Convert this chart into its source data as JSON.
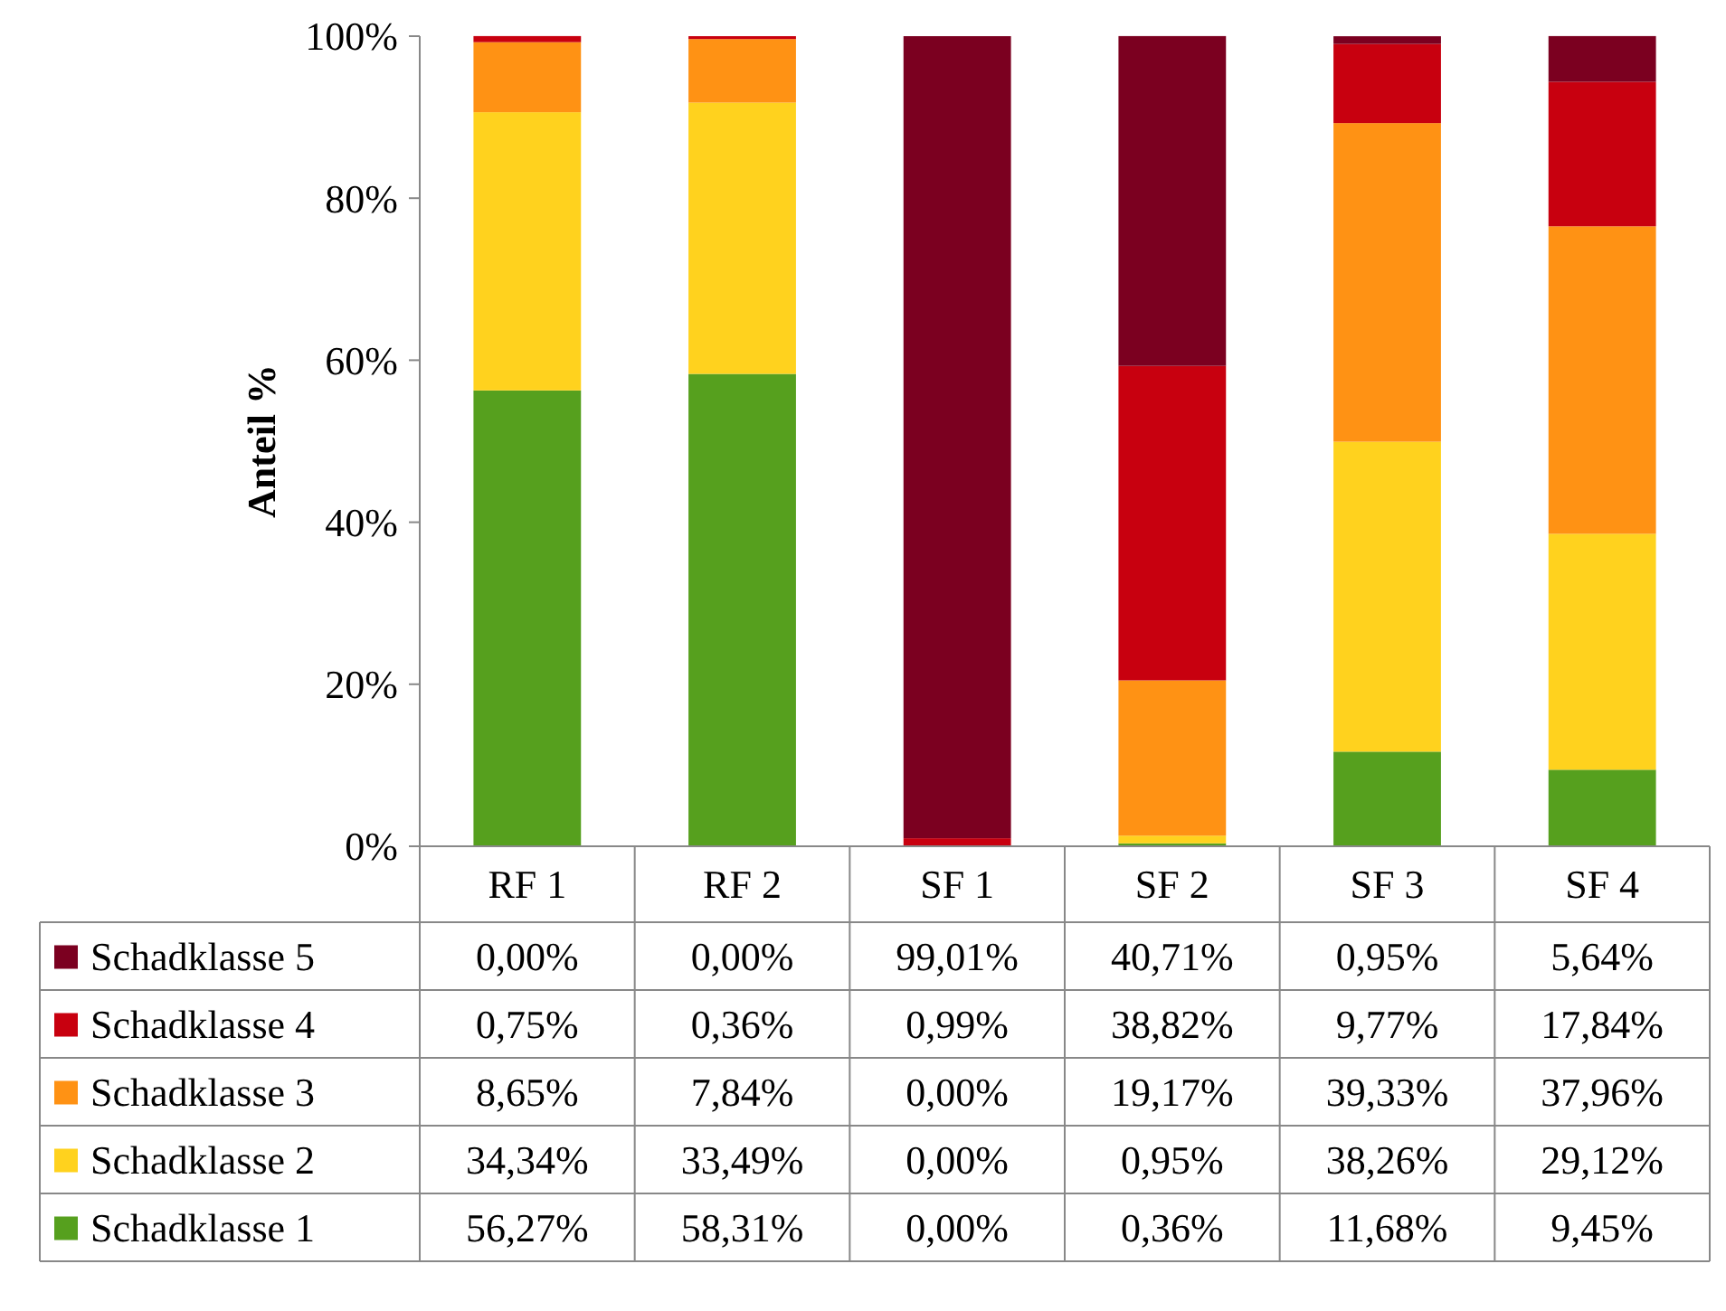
{
  "chart_data": {
    "type": "bar",
    "stacked": true,
    "ylabel": "Anteil %",
    "categories": [
      "RF 1",
      "RF 2",
      "SF 1",
      "SF 2",
      "SF 3",
      "SF 4"
    ],
    "ylim": [
      0,
      100
    ],
    "yticks": [
      {
        "value": 0,
        "label": "0%"
      },
      {
        "value": 20,
        "label": "20%"
      },
      {
        "value": 40,
        "label": "40%"
      },
      {
        "value": 60,
        "label": "60%"
      },
      {
        "value": 80,
        "label": "80%"
      },
      {
        "value": 100,
        "label": "100%"
      }
    ],
    "legend": "bottom",
    "series": [
      {
        "name": "Schadklasse 1",
        "color": "#56a01e",
        "values": [
          56.27,
          58.31,
          0,
          0.36,
          11.68,
          9.45
        ],
        "value_labels": [
          "56,27%",
          "58,31%",
          "0,00%",
          "0,36%",
          "11,68%",
          "9,45%"
        ]
      },
      {
        "name": "Schadklasse 2",
        "color": "#ffd21e",
        "values": [
          34.34,
          33.49,
          0,
          0.95,
          38.26,
          29.12
        ],
        "value_labels": [
          "34,34%",
          "33,49%",
          "0,00%",
          "0,95%",
          "38,26%",
          "29,12%"
        ]
      },
      {
        "name": "Schadklasse 3",
        "color": "#ff9214",
        "values": [
          8.65,
          7.84,
          0,
          19.17,
          39.33,
          37.96
        ],
        "value_labels": [
          "8,65%",
          "7,84%",
          "0,00%",
          "19,17%",
          "39,33%",
          "37,96%"
        ]
      },
      {
        "name": "Schadklasse 4",
        "color": "#c8000f",
        "values": [
          0.75,
          0.36,
          0.99,
          38.82,
          9.77,
          17.84
        ],
        "value_labels": [
          "0,75%",
          "0,36%",
          "0,99%",
          "38,82%",
          "9,77%",
          "17,84%"
        ]
      },
      {
        "name": "Schadklasse 5",
        "color": "#7b0020",
        "values": [
          0,
          0,
          99.01,
          40.71,
          0.95,
          5.64
        ],
        "value_labels": [
          "0,00%",
          "0,00%",
          "99,01%",
          "40,71%",
          "0,95%",
          "5,64%"
        ]
      }
    ]
  }
}
